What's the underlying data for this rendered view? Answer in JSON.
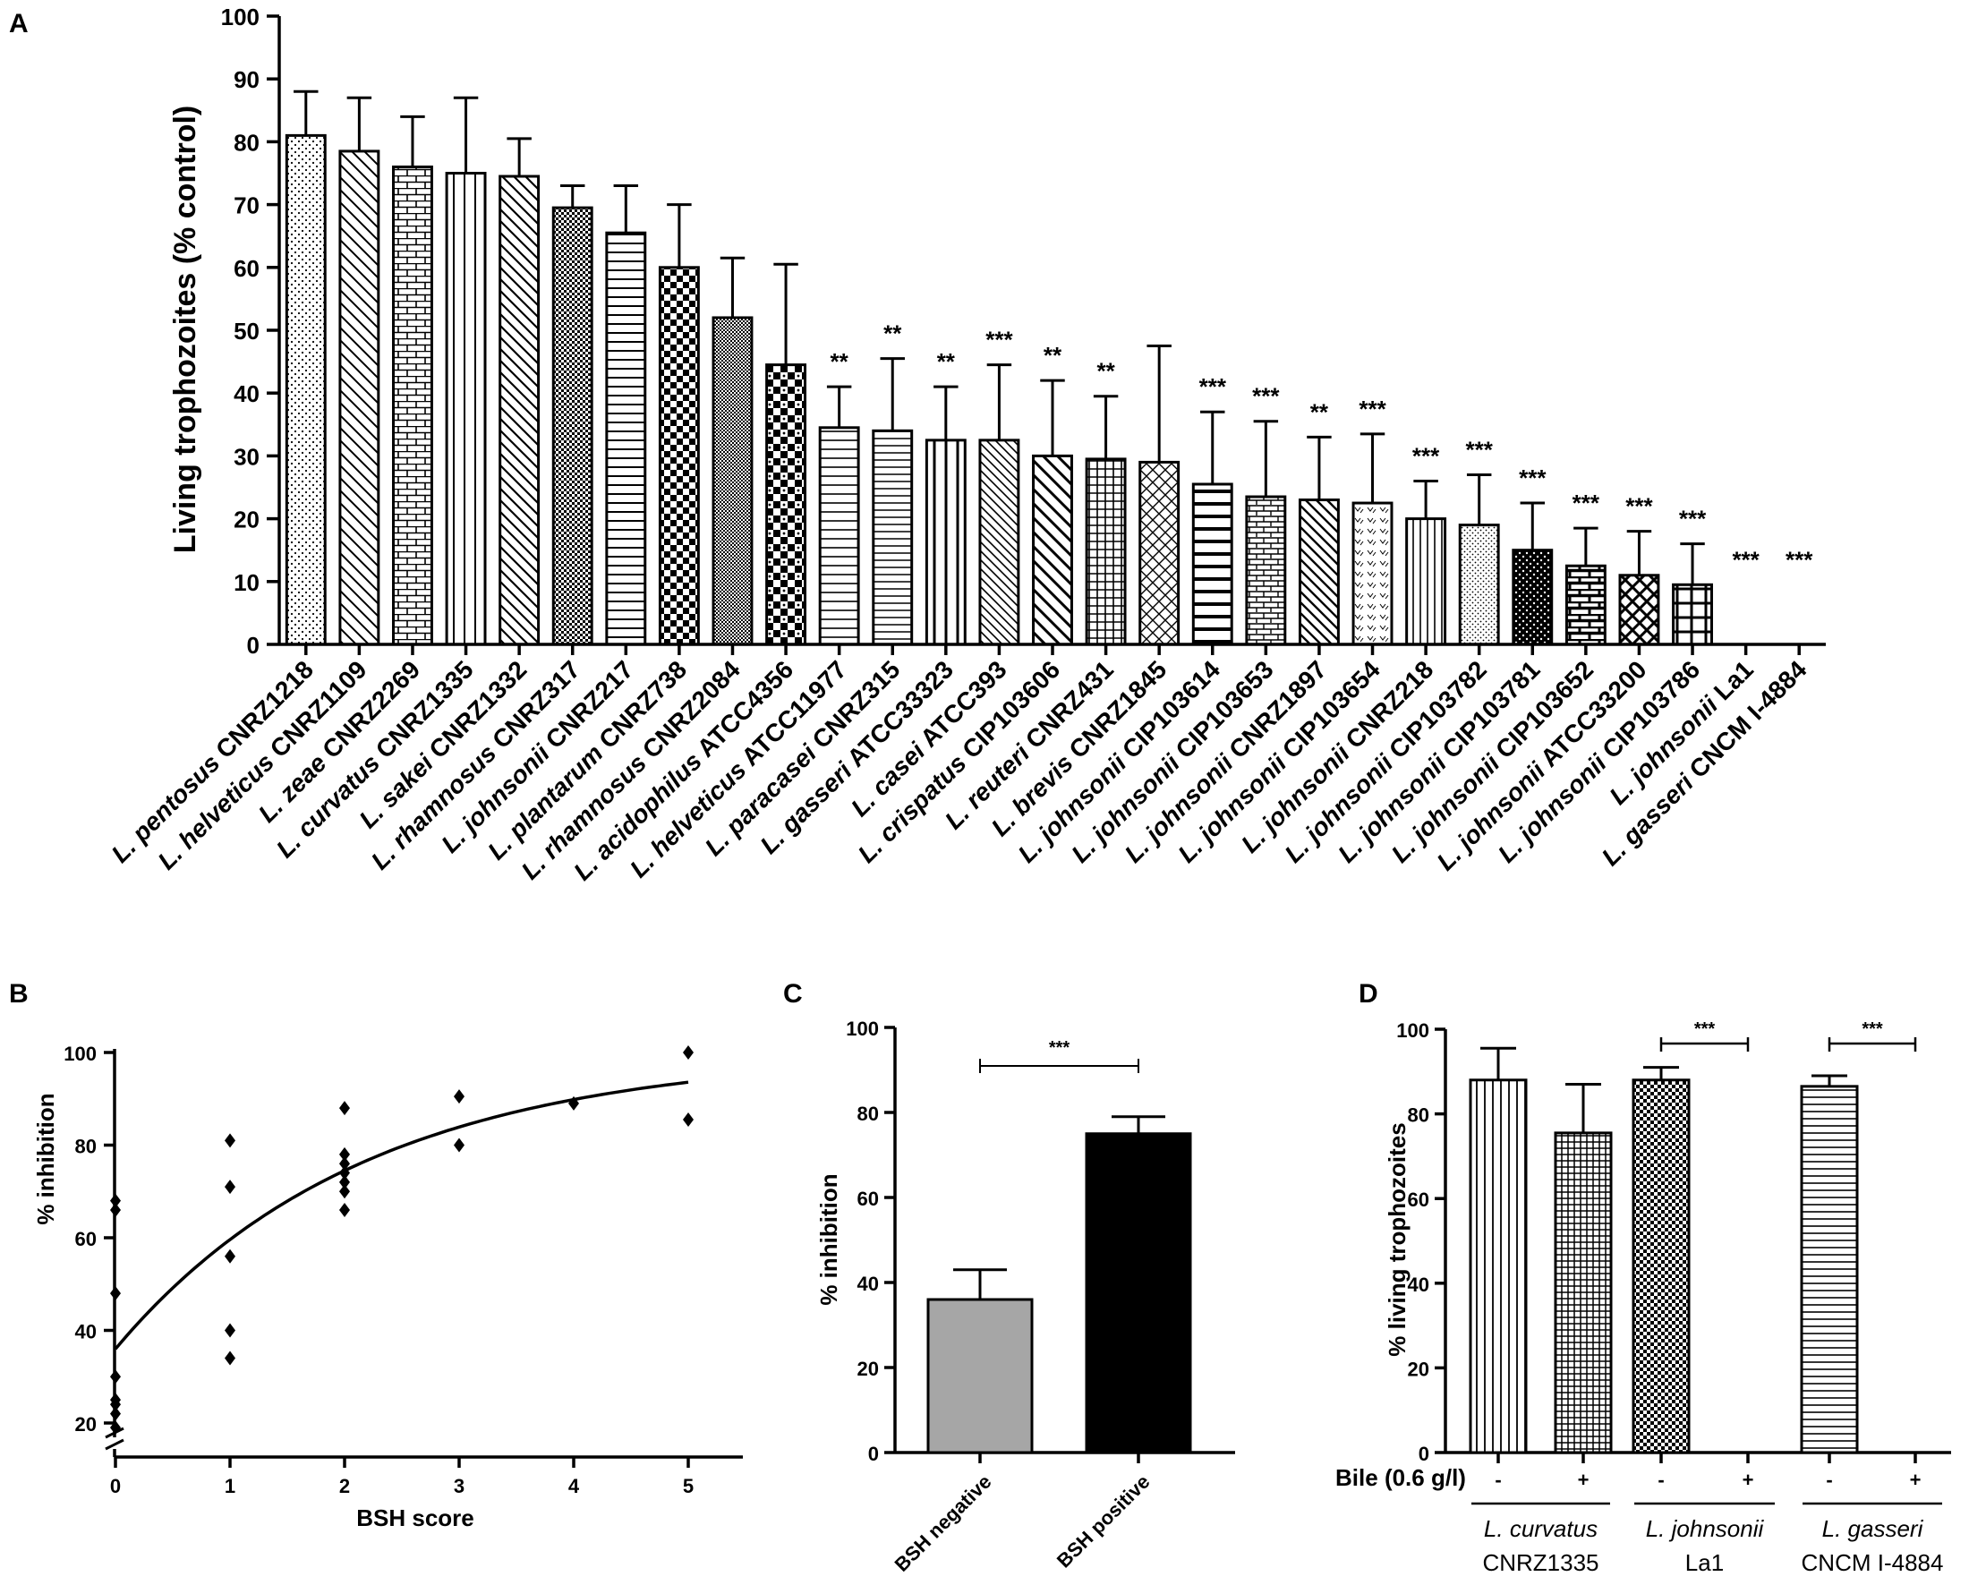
{
  "colors": {
    "ink": "#000000",
    "bsh_negative": "#a6a6a6",
    "bsh_positive": "#000000",
    "background": "#ffffff"
  },
  "chart_data": [
    {
      "panel": "A",
      "type": "bar",
      "ylabel": "Living trophozoites (% control)",
      "ylim": [
        0,
        100
      ],
      "yticks": [
        0,
        10,
        20,
        30,
        40,
        50,
        60,
        70,
        80,
        90,
        100
      ],
      "categories": [
        {
          "species": "L. pentosus",
          "strain": "CNRZ1218"
        },
        {
          "species": "L. helveticus",
          "strain": "CNRZ1109"
        },
        {
          "species": "L. zeae",
          "strain": "CNRZ2269"
        },
        {
          "species": "L. curvatus",
          "strain": "CNRZ1335"
        },
        {
          "species": "L. sakei",
          "strain": "CNRZ1332"
        },
        {
          "species": "L. rhamnosus",
          "strain": "CNRZ317"
        },
        {
          "species": "L. johnsonii",
          "strain": "CNRZ217"
        },
        {
          "species": "L. plantarum",
          "strain": "CNRZ738"
        },
        {
          "species": "L. rhamnosus",
          "strain": "CNRZ2084"
        },
        {
          "species": "L. acidophilus",
          "strain": "ATCC4356"
        },
        {
          "species": "L. helveticus",
          "strain": "ATCC11977"
        },
        {
          "species": "L. paracasei",
          "strain": "CNRZ315"
        },
        {
          "species": "L. gasseri",
          "strain": "ATCC33323"
        },
        {
          "species": "L. casei",
          "strain": "ATCC393"
        },
        {
          "species": "L. crispatus",
          "strain": "CIP103606"
        },
        {
          "species": "L. reuteri",
          "strain": "CNRZ431"
        },
        {
          "species": "L. brevis",
          "strain": "CNRZ1845"
        },
        {
          "species": "L. johnsonii",
          "strain": "CIP103614"
        },
        {
          "species": "L. johnsonii",
          "strain": "CIP103653"
        },
        {
          "species": "L. johnsonii",
          "strain": "CNRZ1897"
        },
        {
          "species": "L. johnsonii",
          "strain": "CIP103654"
        },
        {
          "species": "L. johnsonii",
          "strain": "CNRZ218"
        },
        {
          "species": "L. johnsonii",
          "strain": "CIP103782"
        },
        {
          "species": "L. johnsonii",
          "strain": "CIP103781"
        },
        {
          "species": "L. johnsonii",
          "strain": "CIP103652"
        },
        {
          "species": "L. johnsonii",
          "strain": "ATCC33200"
        },
        {
          "species": "L. johnsonii",
          "strain": "CIP103786"
        },
        {
          "species": "L. johnsonii",
          "strain": "La1"
        },
        {
          "species": "L. gasseri",
          "strain": "CNCM I-4884"
        }
      ],
      "values": [
        81,
        78.5,
        76,
        75,
        74.5,
        69.5,
        65.5,
        60,
        52,
        44.5,
        34.5,
        34,
        32.5,
        32.5,
        30,
        29.5,
        29,
        25.5,
        23.5,
        23,
        22.5,
        20,
        19,
        15,
        12.5,
        11,
        9.5,
        0,
        0
      ],
      "errors": [
        7,
        8.5,
        8,
        12,
        6,
        3.5,
        7.5,
        10,
        9.5,
        16,
        6.5,
        11.5,
        8.5,
        12,
        12,
        10,
        18.5,
        11.5,
        12,
        10,
        11,
        6,
        8,
        7.5,
        6,
        7,
        6.5,
        0,
        0
      ],
      "significance": [
        "",
        "",
        "",
        "",
        "",
        "",
        "",
        "",
        "",
        "",
        "**",
        "**",
        "**",
        "***",
        "**",
        "**",
        "",
        "***",
        "***",
        "**",
        "***",
        "***",
        "***",
        "***",
        "***",
        "***",
        "***",
        "***",
        "***"
      ]
    },
    {
      "panel": "B",
      "type": "scatter",
      "xlabel": "BSH score",
      "ylabel": "% inhibition",
      "xticks": [
        0,
        1,
        2,
        3,
        4,
        5
      ],
      "yticks": [
        20,
        40,
        60,
        80,
        100
      ],
      "xlim": [
        0,
        5.5
      ],
      "ylim": [
        20,
        100
      ],
      "axis_break": true,
      "points": [
        {
          "x": 0,
          "y": 68
        },
        {
          "x": 0,
          "y": 66
        },
        {
          "x": 0,
          "y": 48
        },
        {
          "x": 0,
          "y": 30
        },
        {
          "x": 0,
          "y": 25
        },
        {
          "x": 0,
          "y": 24
        },
        {
          "x": 0,
          "y": 22
        },
        {
          "x": 0,
          "y": 19
        },
        {
          "x": 1,
          "y": 81
        },
        {
          "x": 1,
          "y": 71
        },
        {
          "x": 1,
          "y": 56
        },
        {
          "x": 1,
          "y": 40
        },
        {
          "x": 1,
          "y": 34
        },
        {
          "x": 2,
          "y": 88
        },
        {
          "x": 2,
          "y": 78
        },
        {
          "x": 2,
          "y": 76
        },
        {
          "x": 2,
          "y": 74
        },
        {
          "x": 2,
          "y": 72
        },
        {
          "x": 2,
          "y": 70
        },
        {
          "x": 2,
          "y": 66
        },
        {
          "x": 3,
          "y": 90.5
        },
        {
          "x": 3,
          "y": 80
        },
        {
          "x": 4,
          "y": 89
        },
        {
          "x": 5,
          "y": 100
        },
        {
          "x": 5,
          "y": 85.5
        }
      ],
      "fit": {
        "type": "one-phase association",
        "y0": 36,
        "plateau": 100,
        "k": 0.46
      }
    },
    {
      "panel": "C",
      "type": "bar",
      "ylabel": "% inhibition",
      "ylim": [
        0,
        100
      ],
      "yticks": [
        0,
        20,
        40,
        60,
        80,
        100
      ],
      "categories": [
        "BSH negative",
        "BSH positive"
      ],
      "values": [
        36,
        75
      ],
      "errors": [
        7,
        4
      ],
      "significance": {
        "between": [
          0,
          1
        ],
        "label": "***"
      }
    },
    {
      "panel": "D",
      "type": "bar",
      "ylabel": "% living trophozoites",
      "ylim": [
        0,
        100
      ],
      "yticks": [
        0,
        20,
        40,
        60,
        80,
        100
      ],
      "row_label": "Bile (0.6 g/l)",
      "bile": [
        "-",
        "+",
        "-",
        "+",
        "-",
        "+"
      ],
      "groups": [
        {
          "species": "L. curvatus",
          "strain": "CNRZ1335"
        },
        {
          "species": "L. johnsonii",
          "strain": "La1"
        },
        {
          "species": "L. gasseri",
          "strain": "CNCM I-4884"
        }
      ],
      "values": [
        88,
        75.5,
        88,
        0,
        86.5,
        0
      ],
      "errors": [
        7.5,
        11.5,
        3,
        0,
        2.5,
        0
      ],
      "significance": [
        {
          "between": [
            2,
            3
          ],
          "label": "***"
        },
        {
          "between": [
            4,
            5
          ],
          "label": "***"
        }
      ]
    }
  ]
}
